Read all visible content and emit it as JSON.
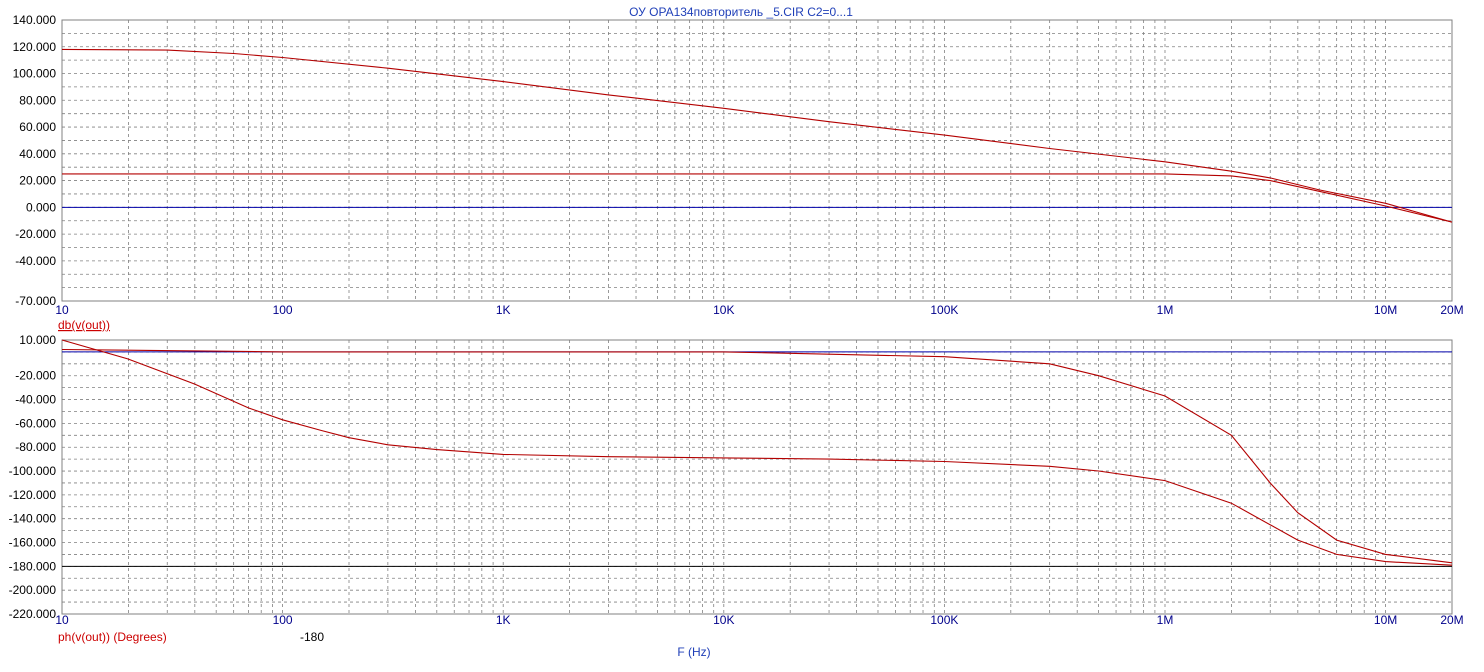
{
  "title": "ОУ OPA134повторитель _5.CIR C2=0...1",
  "xaxis_label": "F (Hz)",
  "colors": {
    "trace": "#b30000",
    "zero_line": "#0000aa",
    "ref_line": "#000000",
    "grid": "#808080",
    "x_ticks": "#00008b",
    "title": "#1f3fb8"
  },
  "chart_data": [
    {
      "type": "line",
      "xscale": "log",
      "xlim": [
        10,
        20000000
      ],
      "ylim": [
        -70,
        140
      ],
      "x_ticks": [
        {
          "v": 10,
          "t": "10"
        },
        {
          "v": 100,
          "t": "100"
        },
        {
          "v": 1000,
          "t": "1K"
        },
        {
          "v": 10000,
          "t": "10K"
        },
        {
          "v": 100000,
          "t": "100K"
        },
        {
          "v": 1000000,
          "t": "1M"
        },
        {
          "v": 10000000,
          "t": "10M"
        },
        {
          "v": 20000000,
          "t": "20M"
        }
      ],
      "y_ticks": [
        {
          "v": 140,
          "t": "140.000"
        },
        {
          "v": 120,
          "t": "120.000"
        },
        {
          "v": 100,
          "t": "100.000"
        },
        {
          "v": 80,
          "t": "80.000"
        },
        {
          "v": 60,
          "t": "60.000"
        },
        {
          "v": 40,
          "t": "40.000"
        },
        {
          "v": 20,
          "t": "20.000"
        },
        {
          "v": 0,
          "t": "0.000"
        },
        {
          "v": -20,
          "t": "-20.000"
        },
        {
          "v": -40,
          "t": "-40.000"
        },
        {
          "v": -70,
          "t": "-70.000"
        }
      ],
      "ylabel": "db(v(out))",
      "grid": true,
      "ref_lines": [
        {
          "y": 0,
          "color": "#0000aa"
        }
      ],
      "series": [
        {
          "color": "#b30000",
          "x": [
            10,
            30,
            60,
            100,
            300,
            1000,
            3000,
            10000,
            30000,
            100000,
            300000,
            1000000,
            2000000,
            3000000,
            5000000,
            10000000,
            20000000
          ],
          "y": [
            118,
            117.5,
            115,
            112,
            104,
            94,
            84,
            74,
            64,
            54,
            44,
            34,
            27,
            22,
            13,
            3,
            -11
          ]
        },
        {
          "color": "#b30000",
          "x": [
            10,
            100,
            1000,
            10000,
            100000,
            1000000,
            2000000,
            3000000,
            5000000,
            10000000,
            20000000
          ],
          "y": [
            25,
            25,
            25,
            25,
            25,
            25,
            23.5,
            20,
            12,
            1,
            -11
          ]
        }
      ]
    },
    {
      "type": "line",
      "xscale": "log",
      "xlim": [
        10,
        20000000
      ],
      "ylim": [
        -220,
        10
      ],
      "x_ticks": [
        {
          "v": 10,
          "t": "10"
        },
        {
          "v": 100,
          "t": "100"
        },
        {
          "v": 1000,
          "t": "1K"
        },
        {
          "v": 10000,
          "t": "10K"
        },
        {
          "v": 100000,
          "t": "100K"
        },
        {
          "v": 1000000,
          "t": "1M"
        },
        {
          "v": 10000000,
          "t": "10M"
        },
        {
          "v": 20000000,
          "t": "20M"
        }
      ],
      "y_ticks": [
        {
          "v": 10,
          "t": "10.000"
        },
        {
          "v": -20,
          "t": "-20.000"
        },
        {
          "v": -40,
          "t": "-40.000"
        },
        {
          "v": -60,
          "t": "-60.000"
        },
        {
          "v": -80,
          "t": "-80.000"
        },
        {
          "v": -100,
          "t": "-100.000"
        },
        {
          "v": -120,
          "t": "-120.000"
        },
        {
          "v": -140,
          "t": "-140.000"
        },
        {
          "v": -160,
          "t": "-160.000"
        },
        {
          "v": -180,
          "t": "-180.000"
        },
        {
          "v": -200,
          "t": "-200.000"
        },
        {
          "v": -220,
          "t": "-220.000"
        }
      ],
      "ylabel": "ph(v(out)) (Degrees)",
      "ref_value_label": "-180",
      "grid": true,
      "ref_lines": [
        {
          "y": 0,
          "color": "#0000aa"
        },
        {
          "y": -180,
          "color": "#000000"
        }
      ],
      "series": [
        {
          "color": "#b30000",
          "x": [
            10,
            100,
            1000,
            10000,
            100000,
            300000,
            500000,
            1000000,
            2000000,
            3000000,
            4000000,
            6000000,
            10000000,
            20000000
          ],
          "y": [
            2,
            0,
            0,
            0,
            -4,
            -10,
            -20,
            -37,
            -70,
            -110,
            -135,
            -158,
            -170,
            -177
          ]
        },
        {
          "color": "#b30000",
          "x": [
            10,
            20,
            40,
            70,
            100,
            150,
            200,
            300,
            500,
            1000,
            3000,
            10000,
            30000,
            100000,
            300000,
            500000,
            1000000,
            2000000,
            4000000,
            6000000,
            10000000,
            20000000
          ],
          "y": [
            10,
            -6,
            -27,
            -47,
            -57,
            -66,
            -72,
            -78,
            -82,
            -86,
            -88,
            -89,
            -90,
            -92,
            -96,
            -100,
            -108,
            -127,
            -158,
            -170,
            -176,
            -179
          ]
        }
      ]
    }
  ]
}
